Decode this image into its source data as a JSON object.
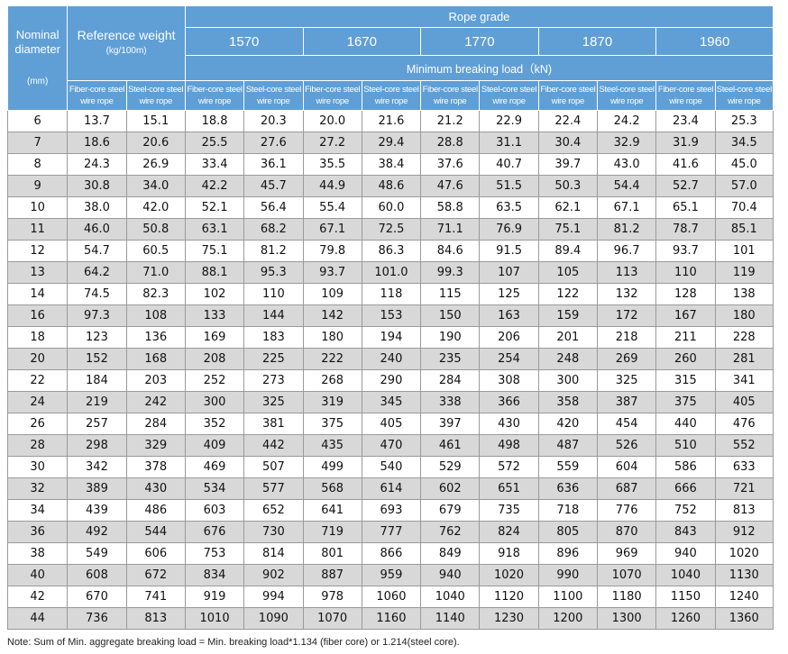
{
  "header": {
    "nominal_diameter": "Nominal diameter",
    "nominal_unit": "(mm)",
    "reference_weight": "Reference weight",
    "reference_unit": "(kg/100m)",
    "rope_grade": "Rope grade",
    "grades": [
      "1570",
      "1670",
      "1770",
      "1870",
      "1960"
    ],
    "min_breaking_load": "Minimum breaking load（kN)",
    "fiber_core": "Fiber-core steel wire rope",
    "steel_core": "Steel-core steel wire rope"
  },
  "rows": [
    [
      "6",
      "13.7",
      "15.1",
      "18.8",
      "20.3",
      "20.0",
      "21.6",
      "21.2",
      "22.9",
      "22.4",
      "24.2",
      "23.4",
      "25.3"
    ],
    [
      "7",
      "18.6",
      "20.6",
      "25.5",
      "27.6",
      "27.2",
      "29.4",
      "28.8",
      "31.1",
      "30.4",
      "32.9",
      "31.9",
      "34.5"
    ],
    [
      "8",
      "24.3",
      "26.9",
      "33.4",
      "36.1",
      "35.5",
      "38.4",
      "37.6",
      "40.7",
      "39.7",
      "43.0",
      "41.6",
      "45.0"
    ],
    [
      "9",
      "30.8",
      "34.0",
      "42.2",
      "45.7",
      "44.9",
      "48.6",
      "47.6",
      "51.5",
      "50.3",
      "54.4",
      "52.7",
      "57.0"
    ],
    [
      "10",
      "38.0",
      "42.0",
      "52.1",
      "56.4",
      "55.4",
      "60.0",
      "58.8",
      "63.5",
      "62.1",
      "67.1",
      "65.1",
      "70.4"
    ],
    [
      "11",
      "46.0",
      "50.8",
      "63.1",
      "68.2",
      "67.1",
      "72.5",
      "71.1",
      "76.9",
      "75.1",
      "81.2",
      "78.7",
      "85.1"
    ],
    [
      "12",
      "54.7",
      "60.5",
      "75.1",
      "81.2",
      "79.8",
      "86.3",
      "84.6",
      "91.5",
      "89.4",
      "96.7",
      "93.7",
      "101"
    ],
    [
      "13",
      "64.2",
      "71.0",
      "88.1",
      "95.3",
      "93.7",
      "101.0",
      "99.3",
      "107",
      "105",
      "113",
      "110",
      "119"
    ],
    [
      "14",
      "74.5",
      "82.3",
      "102",
      "110",
      "109",
      "118",
      "115",
      "125",
      "122",
      "132",
      "128",
      "138"
    ],
    [
      "16",
      "97.3",
      "108",
      "133",
      "144",
      "142",
      "153",
      "150",
      "163",
      "159",
      "172",
      "167",
      "180"
    ],
    [
      "18",
      "123",
      "136",
      "169",
      "183",
      "180",
      "194",
      "190",
      "206",
      "201",
      "218",
      "211",
      "228"
    ],
    [
      "20",
      "152",
      "168",
      "208",
      "225",
      "222",
      "240",
      "235",
      "254",
      "248",
      "269",
      "260",
      "281"
    ],
    [
      "22",
      "184",
      "203",
      "252",
      "273",
      "268",
      "290",
      "284",
      "308",
      "300",
      "325",
      "315",
      "341"
    ],
    [
      "24",
      "219",
      "242",
      "300",
      "325",
      "319",
      "345",
      "338",
      "366",
      "358",
      "387",
      "375",
      "405"
    ],
    [
      "26",
      "257",
      "284",
      "352",
      "381",
      "375",
      "405",
      "397",
      "430",
      "420",
      "454",
      "440",
      "476"
    ],
    [
      "28",
      "298",
      "329",
      "409",
      "442",
      "435",
      "470",
      "461",
      "498",
      "487",
      "526",
      "510",
      "552"
    ],
    [
      "30",
      "342",
      "378",
      "469",
      "507",
      "499",
      "540",
      "529",
      "572",
      "559",
      "604",
      "586",
      "633"
    ],
    [
      "32",
      "389",
      "430",
      "534",
      "577",
      "568",
      "614",
      "602",
      "651",
      "636",
      "687",
      "666",
      "721"
    ],
    [
      "34",
      "439",
      "486",
      "603",
      "652",
      "641",
      "693",
      "679",
      "735",
      "718",
      "776",
      "752",
      "813"
    ],
    [
      "36",
      "492",
      "544",
      "676",
      "730",
      "719",
      "777",
      "762",
      "824",
      "805",
      "870",
      "843",
      "912"
    ],
    [
      "38",
      "549",
      "606",
      "753",
      "814",
      "801",
      "866",
      "849",
      "918",
      "896",
      "969",
      "940",
      "1020"
    ],
    [
      "40",
      "608",
      "672",
      "834",
      "902",
      "887",
      "959",
      "940",
      "1020",
      "990",
      "1070",
      "1040",
      "1130"
    ],
    [
      "42",
      "670",
      "741",
      "919",
      "994",
      "978",
      "1060",
      "1040",
      "1120",
      "1100",
      "1180",
      "1150",
      "1240"
    ],
    [
      "44",
      "736",
      "813",
      "1010",
      "1090",
      "1070",
      "1160",
      "1140",
      "1230",
      "1200",
      "1300",
      "1260",
      "1360"
    ]
  ],
  "note": "Note: Sum of Min. aggregate breaking load = Min. breaking load*1.134 (fiber core) or 1.214(steel core).",
  "colors": {
    "header_bg": "#5f9fd6",
    "header_text": "#ffffff",
    "stripe": "#d8d8d8",
    "border": "#9a9a9a"
  }
}
